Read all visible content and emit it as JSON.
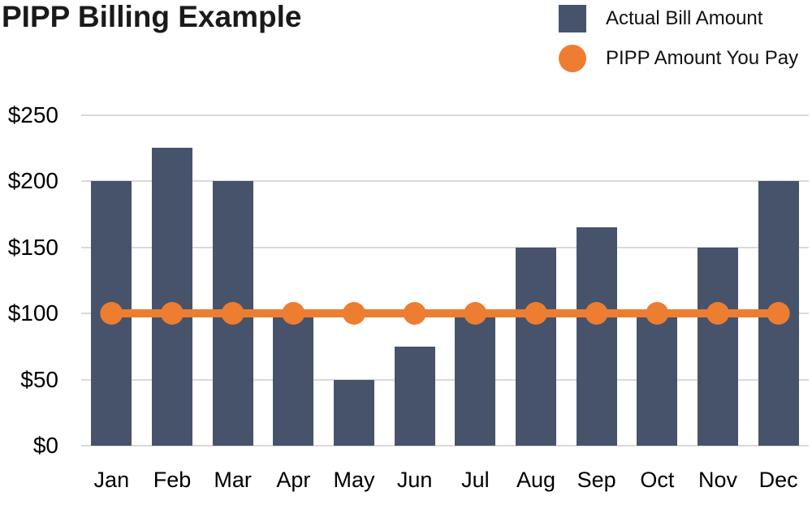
{
  "title": "PIPP Billing Example",
  "legend": [
    {
      "label": "Actual Bill Amount",
      "swatch": "bar-square",
      "color": "#46536b"
    },
    {
      "label": "PIPP Amount You Pay",
      "swatch": "line-dot",
      "color": "#ed7d31"
    }
  ],
  "chart_data": {
    "type": "bar",
    "title": "PIPP Billing Example",
    "categories": [
      "Jan",
      "Feb",
      "Mar",
      "Apr",
      "May",
      "Jun",
      "Jul",
      "Aug",
      "Sep",
      "Oct",
      "Nov",
      "Dec"
    ],
    "series": [
      {
        "name": "Actual Bill Amount",
        "type": "bar",
        "color": "#46536b",
        "values": [
          200,
          225,
          200,
          100,
          50,
          75,
          100,
          150,
          165,
          100,
          150,
          200
        ]
      },
      {
        "name": "PIPP Amount You Pay",
        "type": "line",
        "color": "#ed7d31",
        "values": [
          100,
          100,
          100,
          100,
          100,
          100,
          100,
          100,
          100,
          100,
          100,
          100
        ]
      }
    ],
    "xlabel": "",
    "ylabel": "",
    "ylim": [
      0,
      250
    ],
    "y_tick_step": 50,
    "y_tick_labels": [
      "$0",
      "$50",
      "$100",
      "$150",
      "$200",
      "$250"
    ],
    "currency_prefix": "$",
    "grid": true,
    "gridline_color": "#d9d9d9",
    "legend_position": "top-right"
  }
}
